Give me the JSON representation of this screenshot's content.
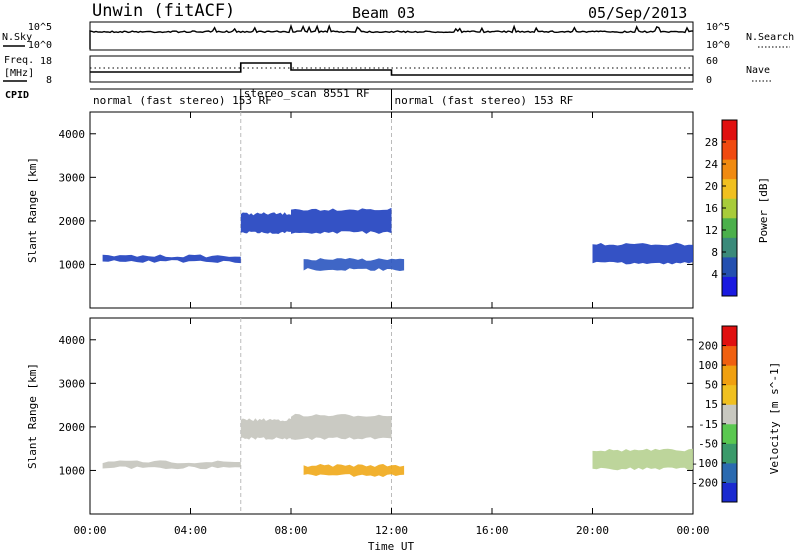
{
  "header": {
    "station": "Unwin (fitACF)",
    "beam": "Beam 03",
    "date": "05/Sep/2013"
  },
  "strip": {
    "nsky_label": "N.Sky",
    "nsearch_label": "N.Search",
    "freq_label_1": "Freq.",
    "freq_label_2": "[MHz]",
    "cpid_label": "CPID",
    "nave_label": "Nave",
    "nsky_ticks": [
      "10^5",
      "10^0"
    ],
    "nsearch_ticks": [
      "10^5",
      "10^0"
    ],
    "freq_ticks": [
      "18",
      "8"
    ],
    "nave_ticks": [
      "60",
      "0"
    ]
  },
  "cpid_segments": [
    {
      "start": 0,
      "end": 6,
      "label": "normal (fast stereo) 153 RF"
    },
    {
      "start": 6,
      "end": 12,
      "label": "stereo_scan 8551 RF"
    },
    {
      "start": 12,
      "end": 24,
      "label": "normal (fast stereo) 153 RF"
    }
  ],
  "chart_data": [
    {
      "type": "heatmap",
      "name": "power",
      "ylabel": "Slant Range [km]",
      "xlabel": "Time UT",
      "xlim": [
        0,
        24
      ],
      "ylim": [
        0,
        4500
      ],
      "y_ticks": [
        1000,
        2000,
        3000,
        4000
      ],
      "colorbar_label": "Power [dB]",
      "colorbar_ticks": [
        "4",
        "8",
        "12",
        "16",
        "20",
        "24",
        "28"
      ],
      "colorbar_colors": [
        "#1a1ae0",
        "#2450b0",
        "#3a8a7a",
        "#4bb04b",
        "#a8cc3a",
        "#f0c020",
        "#f08a10",
        "#f04a10",
        "#e01010"
      ],
      "echo_bands": [
        {
          "t0": 0.5,
          "t1": 6,
          "r0": 1030,
          "r1": 1230,
          "color": "#1e3fbf"
        },
        {
          "t0": 6,
          "t1": 8,
          "r0": 1700,
          "r1": 2200,
          "color": "#1e3fbf"
        },
        {
          "t0": 8,
          "t1": 12,
          "r0": 1700,
          "r1": 2300,
          "color": "#1e3fbf"
        },
        {
          "t0": 8.5,
          "t1": 12.5,
          "r0": 850,
          "r1": 1150,
          "color": "#2a55c0"
        },
        {
          "t0": 20,
          "t1": 24,
          "r0": 1000,
          "r1": 1500,
          "color": "#1e3fbf"
        }
      ]
    },
    {
      "type": "heatmap",
      "name": "velocity",
      "ylabel": "Slant Range [km]",
      "xlabel": "Time UT",
      "xlim": [
        0,
        24
      ],
      "ylim": [
        0,
        4500
      ],
      "y_ticks": [
        1000,
        2000,
        3000,
        4000
      ],
      "x_ticks": [
        "00:00",
        "04:00",
        "08:00",
        "12:00",
        "16:00",
        "20:00",
        "00:00"
      ],
      "colorbar_label": "Velocity [m s^-1]",
      "colorbar_ticks": [
        "200",
        "100",
        "50",
        "15",
        "-15",
        "-50",
        "-100",
        "-200"
      ],
      "colorbar_colors": [
        "#1a2ad0",
        "#2a6ab0",
        "#3a9a6a",
        "#5ac850",
        "#c8c8c0",
        "#f0c020",
        "#f0a010",
        "#f06010",
        "#e01010"
      ],
      "echo_bands": [
        {
          "t0": 0.5,
          "t1": 6,
          "r0": 1030,
          "r1": 1230,
          "color": "#c4c4bc"
        },
        {
          "t0": 6,
          "t1": 8,
          "r0": 1700,
          "r1": 2200,
          "color": "#c4c4bc"
        },
        {
          "t0": 8,
          "t1": 12,
          "r0": 1700,
          "r1": 2300,
          "color": "#c4c4bc"
        },
        {
          "t0": 8.5,
          "t1": 12.5,
          "r0": 850,
          "r1": 1150,
          "color": "#f0a818"
        },
        {
          "t0": 20,
          "t1": 24,
          "r0": 1000,
          "r1": 1500,
          "color": "#b6d090"
        }
      ]
    }
  ]
}
